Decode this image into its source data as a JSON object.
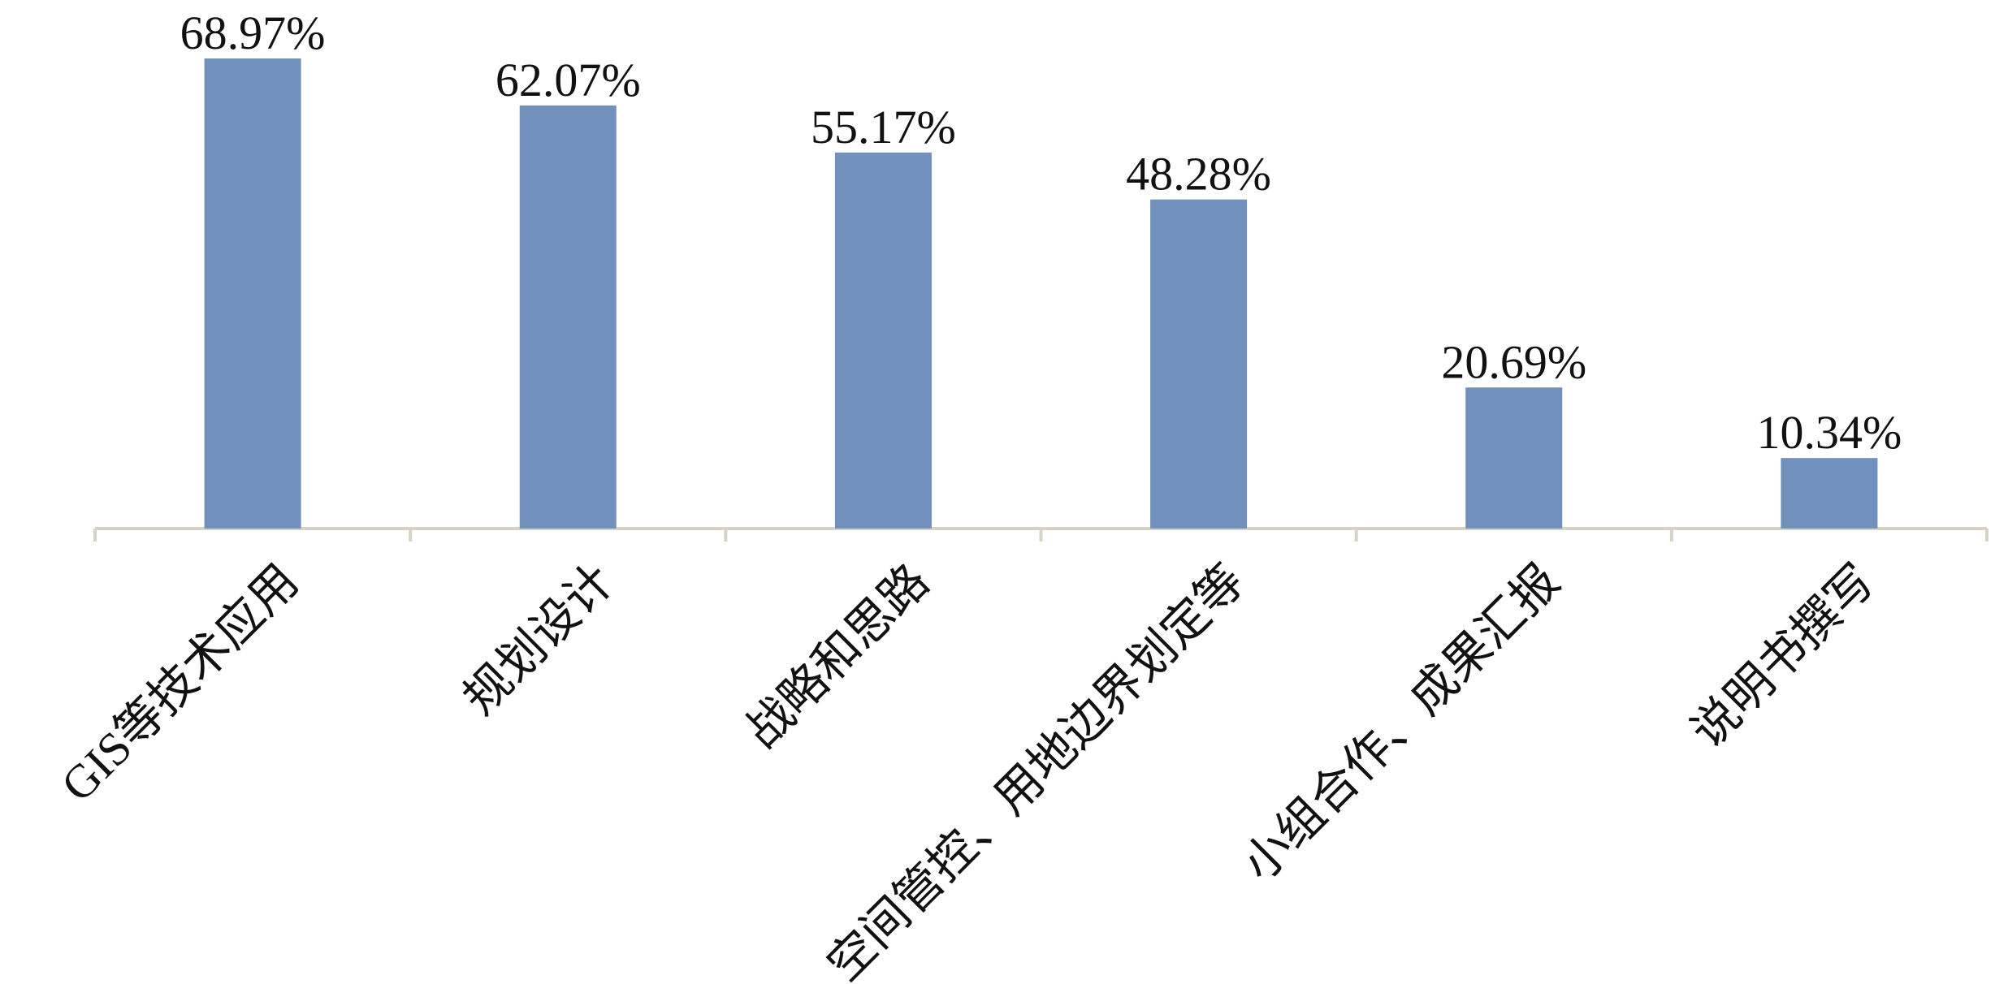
{
  "chart_data": {
    "type": "bar",
    "categories": [
      "GIS等技术应用",
      "规划设计",
      "战略和思路",
      "空间管控、用地边界划定等",
      "小组合作、成果汇报",
      "说明书撰写"
    ],
    "values": [
      68.97,
      62.07,
      55.17,
      48.28,
      20.69,
      10.34
    ],
    "value_labels": [
      "68.97%",
      "62.07%",
      "55.17%",
      "48.28%",
      "20.69%",
      "10.34%"
    ],
    "color": "#7190bb"
  }
}
